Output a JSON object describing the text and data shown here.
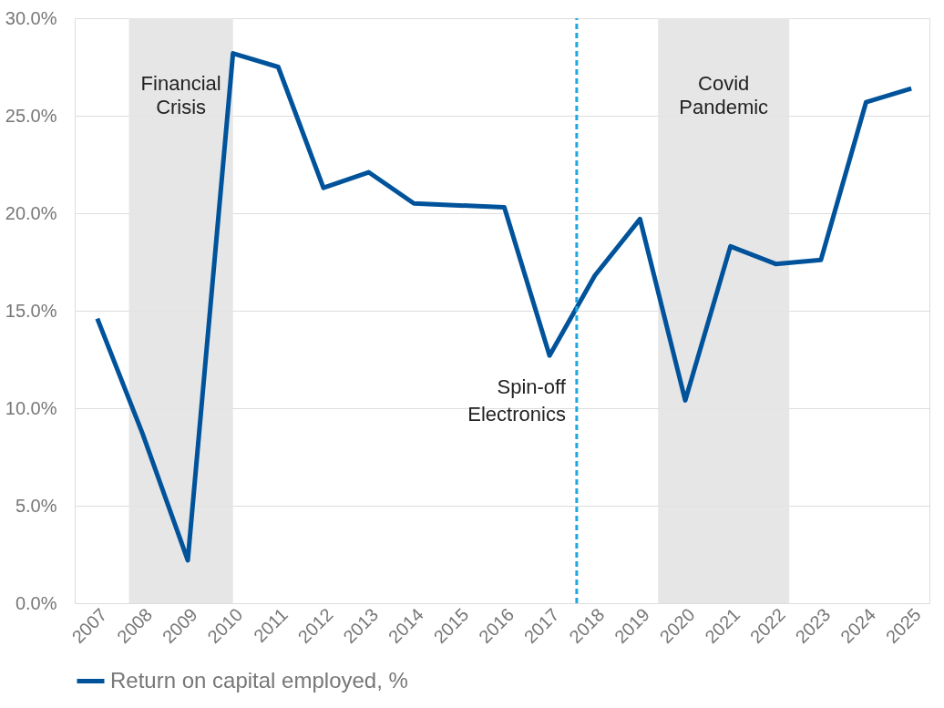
{
  "chart_data": {
    "type": "line",
    "x": [
      2007,
      2008,
      2009,
      2010,
      2011,
      2012,
      2013,
      2014,
      2015,
      2016,
      2017,
      2018,
      2019,
      2020,
      2021,
      2022,
      2023,
      2024,
      2025
    ],
    "series": [
      {
        "name": "Return on capital employed, %",
        "color": "#00539b",
        "values": [
          14.6,
          8.7,
          2.2,
          28.2,
          27.5,
          21.3,
          22.1,
          20.5,
          20.4,
          20.3,
          12.7,
          16.8,
          19.7,
          10.4,
          18.3,
          17.4,
          17.6,
          25.7,
          26.4
        ]
      }
    ],
    "xlim": [
      2006.5,
      2025.4
    ],
    "xticks": [
      2007,
      2008,
      2009,
      2010,
      2011,
      2012,
      2013,
      2014,
      2015,
      2016,
      2017,
      2018,
      2019,
      2020,
      2021,
      2022,
      2023,
      2024,
      2025
    ],
    "ylim": [
      0,
      30
    ],
    "yticks": [
      {
        "value": 0,
        "label": "0.0%"
      },
      {
        "value": 5,
        "label": "5.0%"
      },
      {
        "value": 10,
        "label": "10.0%"
      },
      {
        "value": 15,
        "label": "15.0%"
      },
      {
        "value": 20,
        "label": "20.0%"
      },
      {
        "value": 25,
        "label": "25.0%"
      },
      {
        "value": 30,
        "label": "30.0%"
      }
    ],
    "bands": [
      {
        "axis": "x",
        "from": 2007.7,
        "to": 2010.0,
        "label": "Financial\nCrisis",
        "color": "#e3e3e3"
      },
      {
        "axis": "x",
        "from": 2019.4,
        "to": 2022.3,
        "label": "Covid\nPandemic",
        "color": "#e3e3e3"
      }
    ],
    "ref_lines": [
      {
        "axis": "x",
        "value": 2017.6,
        "label": "Spin-off\nElectronics",
        "color": "#1ea7e1",
        "line_style": "dashed"
      }
    ],
    "grid": "y",
    "legend": "bottom",
    "marker": "none",
    "line_style": "solid"
  }
}
